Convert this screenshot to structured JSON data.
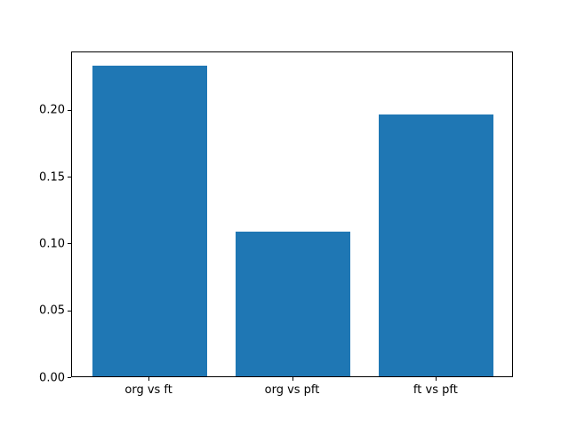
{
  "chart_data": {
    "type": "bar",
    "categories": [
      "org vs ft",
      "org vs pft",
      "ft vs pft"
    ],
    "values": [
      0.232,
      0.108,
      0.196
    ],
    "title": "",
    "xlabel": "",
    "ylabel": "",
    "ylim": [
      0,
      0.2436
    ],
    "yticks": [
      0.0,
      0.05,
      0.1,
      0.15,
      0.2
    ],
    "ytick_format_decimals": 2,
    "bar_width_fraction": 0.8,
    "grid": false,
    "legend_position": "none",
    "bar_color": "#1f77b4",
    "background_color": "#ffffff",
    "spine_color": "#000000"
  }
}
